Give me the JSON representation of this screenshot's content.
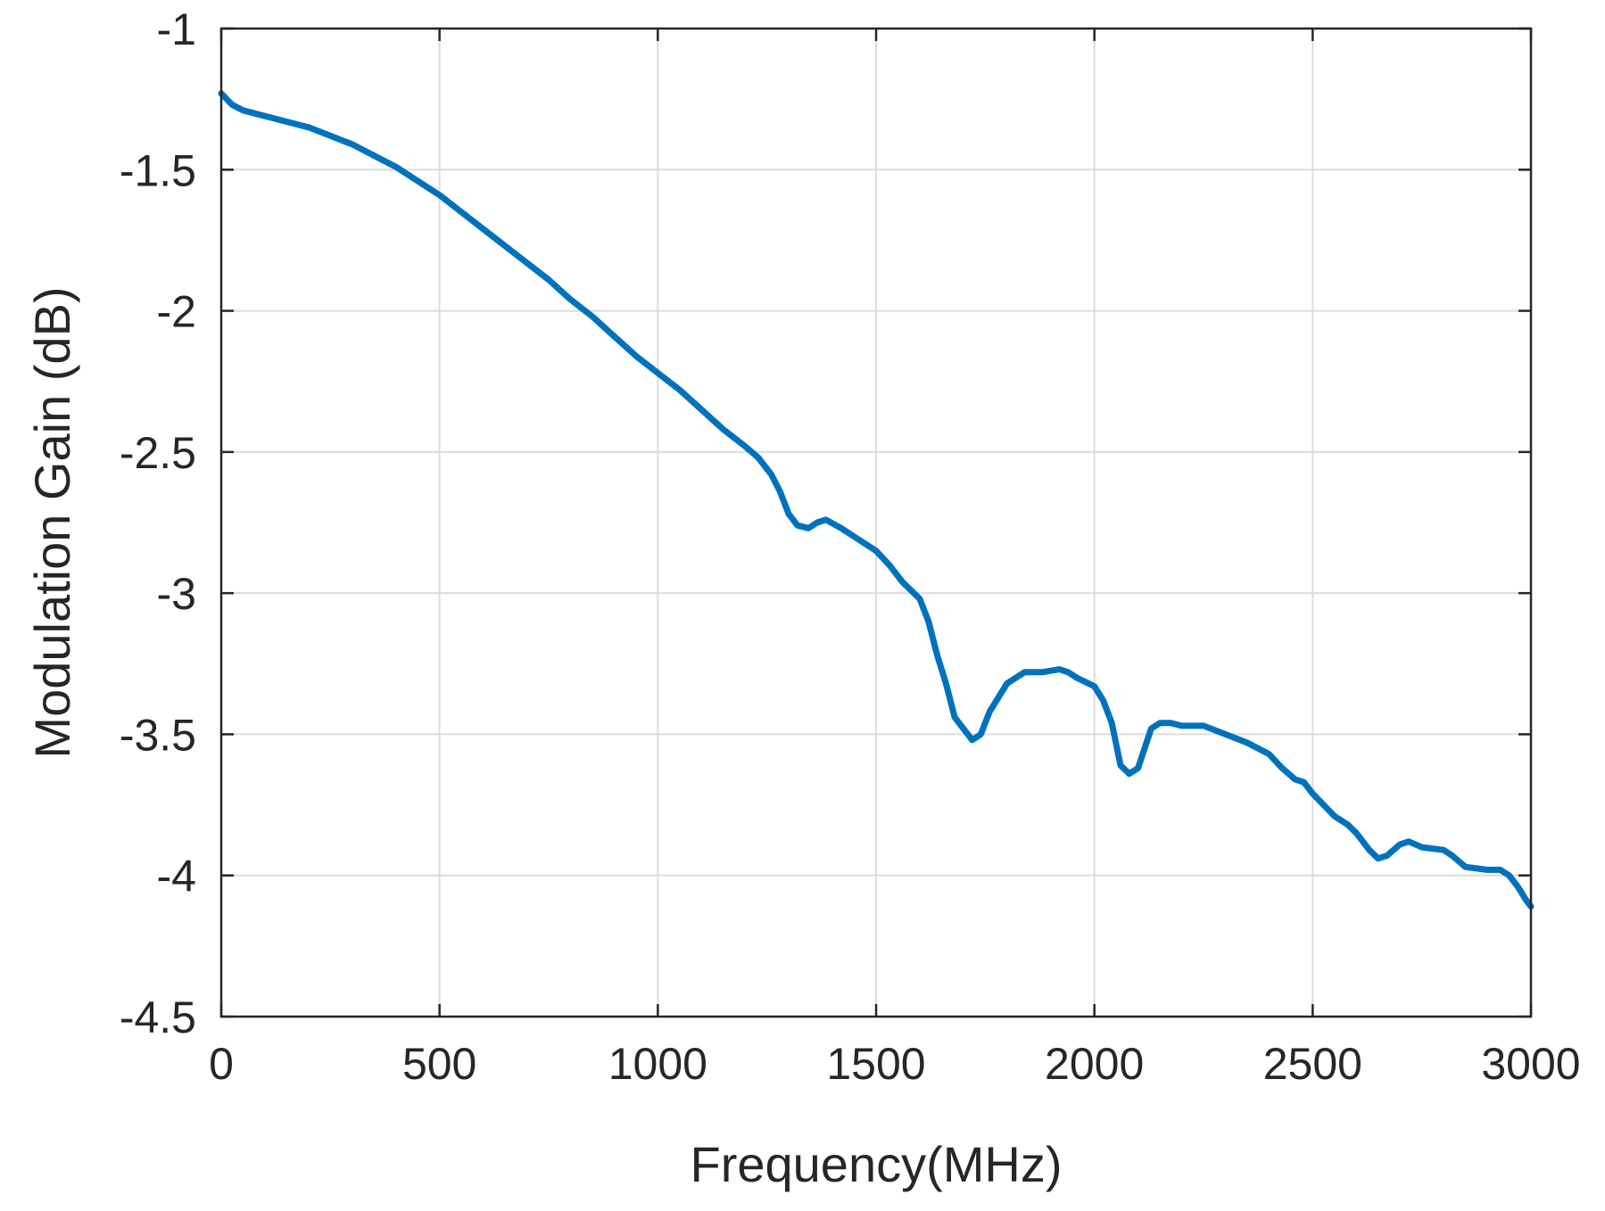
{
  "chart_data": {
    "type": "line",
    "title": "",
    "xlabel": "Frequency(MHz)",
    "ylabel": "Modulation Gain (dB)",
    "xlim": [
      0,
      3000
    ],
    "ylim": [
      -4.5,
      -1
    ],
    "xticks": [
      0,
      500,
      1000,
      1500,
      2000,
      2500,
      3000
    ],
    "xtick_labels": [
      "0",
      "500",
      "1000",
      "1500",
      "2000",
      "2500",
      "3000"
    ],
    "yticks": [
      -1,
      -1.5,
      -2,
      -2.5,
      -3,
      -3.5,
      -4,
      -4.5
    ],
    "ytick_labels": [
      "-1",
      "-1.5",
      "-2",
      "-2.5",
      "-3",
      "-3.5",
      "-4",
      "-4.5"
    ],
    "grid": true,
    "line_color": "#0072BD",
    "series": [
      {
        "x": [
          0,
          25,
          50,
          100,
          150,
          200,
          250,
          300,
          350,
          400,
          450,
          500,
          550,
          600,
          650,
          700,
          750,
          800,
          850,
          900,
          950,
          1000,
          1050,
          1100,
          1150,
          1200,
          1230,
          1260,
          1280,
          1300,
          1320,
          1345,
          1365,
          1385,
          1420,
          1460,
          1500,
          1530,
          1560,
          1600,
          1620,
          1640,
          1660,
          1680,
          1700,
          1720,
          1740,
          1760,
          1800,
          1840,
          1880,
          1920,
          1940,
          1960,
          2000,
          2020,
          2040,
          2060,
          2080,
          2100,
          2115,
          2130,
          2150,
          2175,
          2200,
          2250,
          2300,
          2350,
          2400,
          2430,
          2460,
          2480,
          2500,
          2550,
          2580,
          2600,
          2630,
          2650,
          2670,
          2700,
          2720,
          2750,
          2800,
          2820,
          2850,
          2900,
          2930,
          2950,
          2970,
          2990,
          3000
        ],
        "y": [
          -1.23,
          -1.27,
          -1.29,
          -1.31,
          -1.33,
          -1.35,
          -1.38,
          -1.41,
          -1.45,
          -1.49,
          -1.54,
          -1.59,
          -1.65,
          -1.71,
          -1.77,
          -1.83,
          -1.89,
          -1.96,
          -2.02,
          -2.09,
          -2.16,
          -2.22,
          -2.28,
          -2.35,
          -2.42,
          -2.48,
          -2.52,
          -2.58,
          -2.64,
          -2.72,
          -2.76,
          -2.77,
          -2.75,
          -2.74,
          -2.77,
          -2.81,
          -2.85,
          -2.9,
          -2.96,
          -3.02,
          -3.1,
          -3.22,
          -3.32,
          -3.44,
          -3.48,
          -3.52,
          -3.5,
          -3.42,
          -3.32,
          -3.28,
          -3.28,
          -3.27,
          -3.28,
          -3.3,
          -3.33,
          -3.38,
          -3.46,
          -3.61,
          -3.64,
          -3.62,
          -3.55,
          -3.48,
          -3.46,
          -3.46,
          -3.47,
          -3.47,
          -3.5,
          -3.53,
          -3.57,
          -3.62,
          -3.66,
          -3.67,
          -3.71,
          -3.79,
          -3.82,
          -3.85,
          -3.91,
          -3.94,
          -3.93,
          -3.89,
          -3.88,
          -3.9,
          -3.91,
          -3.93,
          -3.97,
          -3.98,
          -3.98,
          -4.0,
          -4.04,
          -4.09,
          -4.11
        ]
      }
    ]
  }
}
